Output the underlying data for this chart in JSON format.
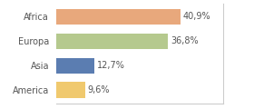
{
  "categories": [
    "Africa",
    "Europa",
    "Asia",
    "America"
  ],
  "values": [
    40.9,
    36.8,
    12.7,
    9.6
  ],
  "labels": [
    "40,9%",
    "36,8%",
    "12,7%",
    "9,6%"
  ],
  "bar_colors": [
    "#e8a87c",
    "#b5c98e",
    "#5b7db1",
    "#f0c96e"
  ],
  "background_color": "#ffffff",
  "xlim": [
    0,
    55
  ],
  "bar_height": 0.65,
  "label_fontsize": 7,
  "category_fontsize": 7
}
